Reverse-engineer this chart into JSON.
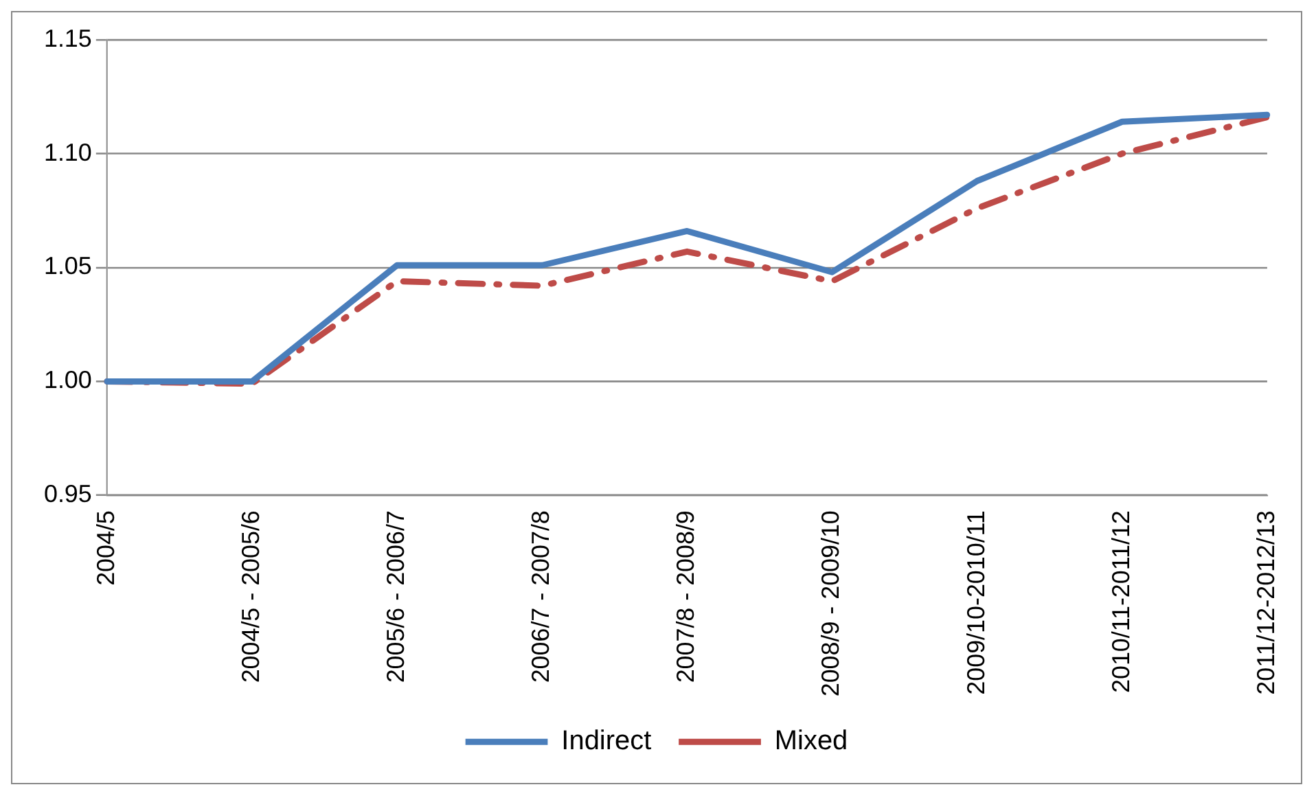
{
  "chart_data": {
    "type": "line",
    "categories": [
      "2004/5",
      "2004/5 - 2005/6",
      "2005/6 - 2006/7",
      "2006/7 - 2007/8",
      "2007/8 - 2008/9",
      "2008/9 - 2009/10",
      "2009/10-2010/11",
      "2010/11-2011/12",
      "2011/12-2012/13"
    ],
    "series": [
      {
        "name": "Indirect",
        "color": "#4a7ebb",
        "line_style": "solid",
        "values": [
          1.0,
          1.0,
          1.051,
          1.051,
          1.066,
          1.048,
          1.088,
          1.114,
          1.117
        ]
      },
      {
        "name": "Mixed",
        "color": "#be4b48",
        "line_style": "dashed",
        "values": [
          1.0,
          0.999,
          1.044,
          1.042,
          1.057,
          1.044,
          1.076,
          1.1,
          1.116
        ]
      }
    ],
    "ylim": [
      0.95,
      1.15
    ],
    "yticks": [
      {
        "value": 0.95,
        "label": "0.95"
      },
      {
        "value": 1.0,
        "label": "1.00"
      },
      {
        "value": 1.05,
        "label": "1.05"
      },
      {
        "value": 1.1,
        "label": "1.10"
      },
      {
        "value": 1.15,
        "label": "1.15"
      }
    ],
    "grid": "y",
    "legend": "bottom",
    "marker": "none"
  }
}
